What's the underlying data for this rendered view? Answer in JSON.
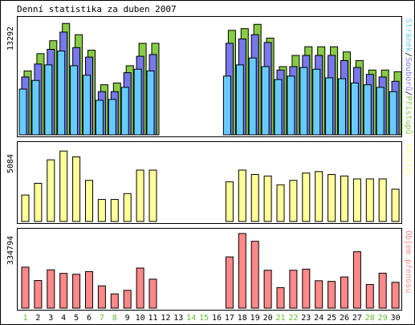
{
  "title": "Denní statistika za duben 2007",
  "chart_data": [
    {
      "type": "bar",
      "name": "hits",
      "categories": [
        "1",
        "2",
        "3",
        "4",
        "5",
        "6",
        "7",
        "8",
        "9",
        "10",
        "11",
        "12",
        "13",
        "14",
        "15",
        "16",
        "17",
        "18",
        "19",
        "20",
        "21",
        "22",
        "23",
        "24",
        "25",
        "26",
        "27",
        "28",
        "29",
        "30"
      ],
      "weekend_days": [
        "1",
        "7",
        "8",
        "14",
        "15",
        "21",
        "22",
        "28",
        "29"
      ],
      "ymax_label": "13292",
      "ylim": [
        0,
        13292
      ],
      "legend": [
        {
          "label": "Stránek",
          "color": "#66ccff"
        },
        {
          "label": "/",
          "color": "#000000"
        },
        {
          "label": "Souborů",
          "color": "#7777ee"
        },
        {
          "label": "/",
          "color": "#000000"
        },
        {
          "label": "Přístupů",
          "color": "#88cc44"
        }
      ],
      "series": [
        {
          "name": "Přístupů",
          "color": "#88cc44",
          "values": [
            7400,
            9400,
            10900,
            12900,
            11600,
            9800,
            5800,
            6000,
            8000,
            10600,
            10600,
            null,
            null,
            null,
            null,
            null,
            12100,
            12300,
            12800,
            11200,
            7900,
            9200,
            10200,
            10200,
            10200,
            9600,
            8600,
            7500,
            7500,
            7300
          ]
        },
        {
          "name": "Souborů",
          "color": "#7777ee",
          "values": [
            6700,
            8200,
            9900,
            11900,
            10100,
            9000,
            5000,
            5000,
            7200,
            9100,
            9300,
            null,
            null,
            null,
            null,
            null,
            10600,
            11100,
            11600,
            10700,
            7500,
            7900,
            9200,
            9200,
            9200,
            8600,
            7800,
            7000,
            6700,
            6200
          ]
        },
        {
          "name": "Stránek",
          "color": "#66ccff",
          "values": [
            5300,
            6300,
            8100,
            9700,
            8000,
            6900,
            4000,
            4100,
            5500,
            7600,
            7400,
            null,
            null,
            null,
            null,
            null,
            6800,
            8100,
            8900,
            7900,
            6400,
            6800,
            7800,
            7600,
            6600,
            6500,
            6000,
            5800,
            5500,
            5000
          ]
        }
      ]
    },
    {
      "type": "bar",
      "name": "visits",
      "categories": [
        "1",
        "2",
        "3",
        "4",
        "5",
        "6",
        "7",
        "8",
        "9",
        "10",
        "11",
        "12",
        "13",
        "14",
        "15",
        "16",
        "17",
        "18",
        "19",
        "20",
        "21",
        "22",
        "23",
        "24",
        "25",
        "26",
        "27",
        "28",
        "29",
        "30"
      ],
      "ymax_label": "5084",
      "ylim": [
        0,
        5084
      ],
      "legend": [
        {
          "label": "Návštěv",
          "color": "#ffff99"
        }
      ],
      "series": [
        {
          "name": "Návštěv",
          "color": "#ffff99",
          "values": [
            1800,
            2600,
            4200,
            4800,
            4400,
            2800,
            1500,
            1500,
            1900,
            3500,
            3500,
            null,
            null,
            null,
            null,
            null,
            2700,
            3500,
            3200,
            3100,
            2500,
            2800,
            3300,
            3400,
            3200,
            3100,
            2900,
            2900,
            2900,
            2200
          ]
        }
      ]
    },
    {
      "type": "bar",
      "name": "kbytes",
      "categories": [
        "1",
        "2",
        "3",
        "4",
        "5",
        "6",
        "7",
        "8",
        "9",
        "10",
        "11",
        "12",
        "13",
        "14",
        "15",
        "16",
        "17",
        "18",
        "19",
        "20",
        "21",
        "22",
        "23",
        "24",
        "25",
        "26",
        "27",
        "28",
        "29",
        "30"
      ],
      "ymax_label": "334794",
      "ylim": [
        0,
        334794
      ],
      "legend": [
        {
          "label": "Objem přenosu",
          "color": "#ff8888"
        }
      ],
      "series": [
        {
          "name": "Objem přenosu",
          "color": "#ff8888",
          "values": [
            184000,
            124000,
            172000,
            156000,
            152000,
            164000,
            100000,
            64000,
            80000,
            180000,
            130000,
            null,
            null,
            null,
            null,
            null,
            230000,
            334794,
            300000,
            170000,
            92000,
            170000,
            175000,
            123000,
            120000,
            140000,
            253000,
            106000,
            157000,
            116000
          ]
        }
      ]
    }
  ]
}
